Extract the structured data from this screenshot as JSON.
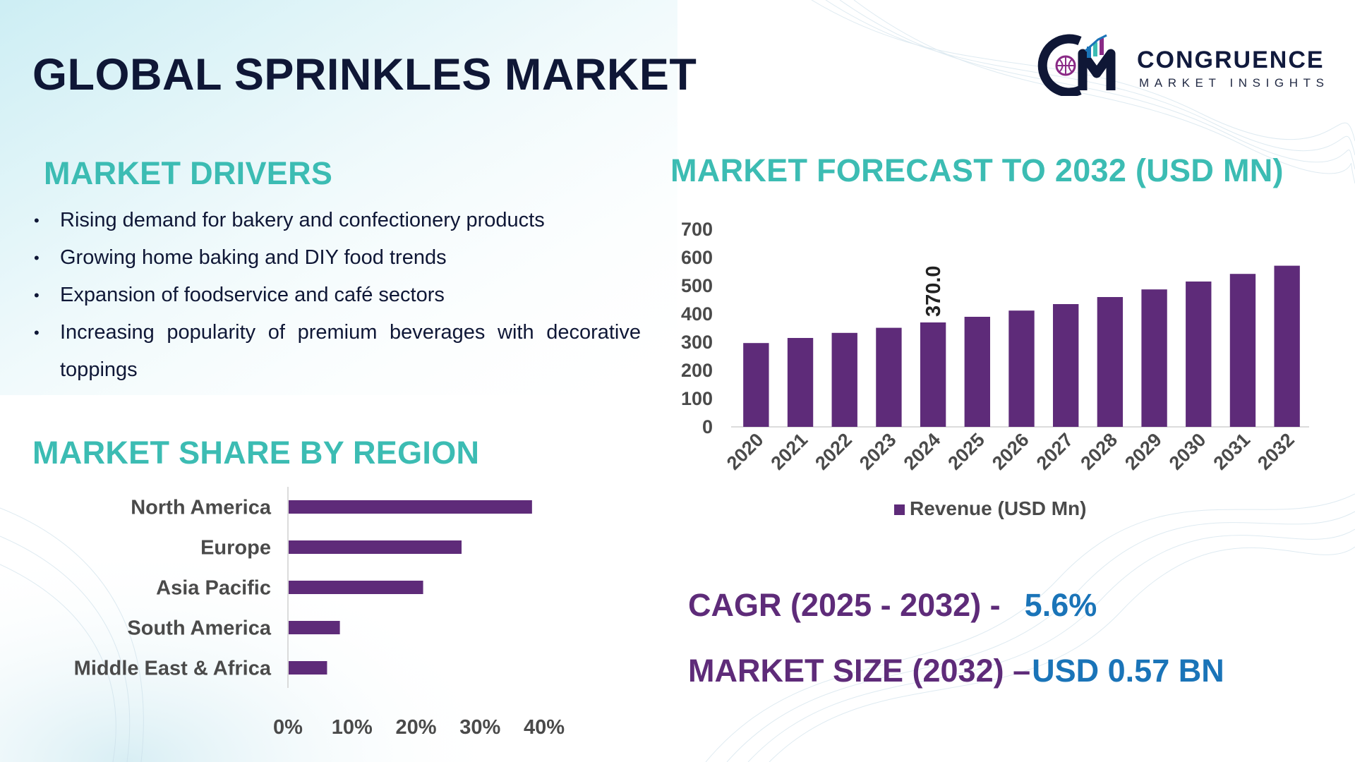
{
  "title": "GLOBAL SPRINKLES MARKET",
  "logo": {
    "brand": "CONGRUENCE",
    "subtitle": "MARKET INSIGHTS",
    "icon": "cmi-logo-icon"
  },
  "colors": {
    "bar": "#5e2b79",
    "heading": "#3cbcb3",
    "title": "#0f1736",
    "metric_label": "#5e2b79",
    "metric_value": "#1a74b8",
    "axis_text": "#4a4a4a"
  },
  "drivers": {
    "heading": "MARKET DRIVERS",
    "items": [
      "Rising demand for bakery and confectionery products",
      "Growing home baking and DIY food trends",
      "Expansion of foodservice and café sectors",
      "Increasing popularity of premium beverages with decorative toppings"
    ]
  },
  "forecast": {
    "heading": "MARKET FORECAST TO 2032 (USD MN)"
  },
  "region": {
    "heading": "MARKET SHARE BY REGION"
  },
  "metrics": {
    "cagr_label": "CAGR (2025 - 2032) -",
    "cagr_value": "5.6%",
    "size_label": "MARKET SIZE (2032) –",
    "size_value": "USD 0.57 BN"
  },
  "chart_data": [
    {
      "type": "bar",
      "title": "MARKET FORECAST TO 2032 (USD MN)",
      "categories": [
        "2020",
        "2021",
        "2022",
        "2023",
        "2024",
        "2025",
        "2026",
        "2027",
        "2028",
        "2029",
        "2030",
        "2031",
        "2032"
      ],
      "series": [
        {
          "name": "Revenue (USD Mn)",
          "values": [
            297,
            315,
            333,
            351,
            370,
            390,
            412,
            435,
            460,
            487,
            515,
            542,
            571
          ]
        }
      ],
      "data_labels": [
        {
          "category": "2024",
          "text": "370.0"
        }
      ],
      "yticks": [
        "0",
        "100",
        "200",
        "300",
        "400",
        "500",
        "600",
        "700"
      ],
      "ylim": [
        0,
        700
      ],
      "xlabel": "",
      "ylabel": "",
      "legend": "bottom",
      "grid": false
    },
    {
      "type": "bar",
      "orientation": "horizontal",
      "title": "MARKET SHARE BY REGION",
      "categories": [
        "North America",
        "Europe",
        "Asia Pacific",
        "South America",
        "Middle East & Africa"
      ],
      "values": [
        38,
        27,
        21,
        8,
        6
      ],
      "xticks": [
        "0%",
        "10%",
        "20%",
        "30%",
        "40%"
      ],
      "xlim": [
        0,
        40
      ],
      "unit": "%",
      "grid": false
    }
  ]
}
